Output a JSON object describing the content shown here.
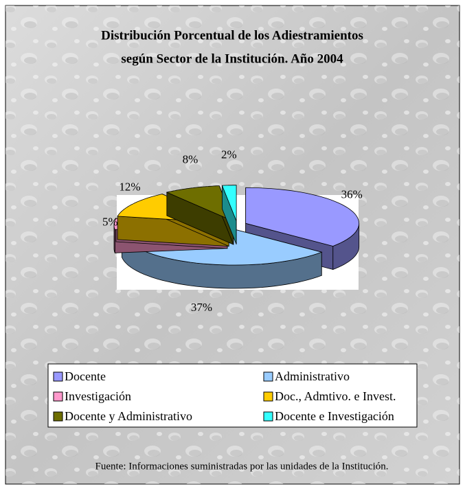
{
  "chart_data": {
    "type": "pie",
    "title": [
      "Distribución Porcentual de los Adiestramientos",
      "según Sector de la Institución. Año 2004"
    ],
    "categories": [
      "Docente",
      "Administrativo",
      "Investigación",
      "Doc., Admtivo. e Invest.",
      "Docente y Administrativo",
      "Docente e Investigación"
    ],
    "values": [
      36,
      37,
      5,
      12,
      8,
      2
    ],
    "value_labels": [
      "36%",
      "37%",
      "5%",
      "12%",
      "8%",
      "2%"
    ],
    "colors": [
      "#9999ff",
      "#99ccff",
      "#ff99cc",
      "#ffcc00",
      "#6e6e00",
      "#33ffff"
    ],
    "legend": "bottom",
    "source": "Fuente: Informaciones suministradas por las unidades de la Institución."
  }
}
